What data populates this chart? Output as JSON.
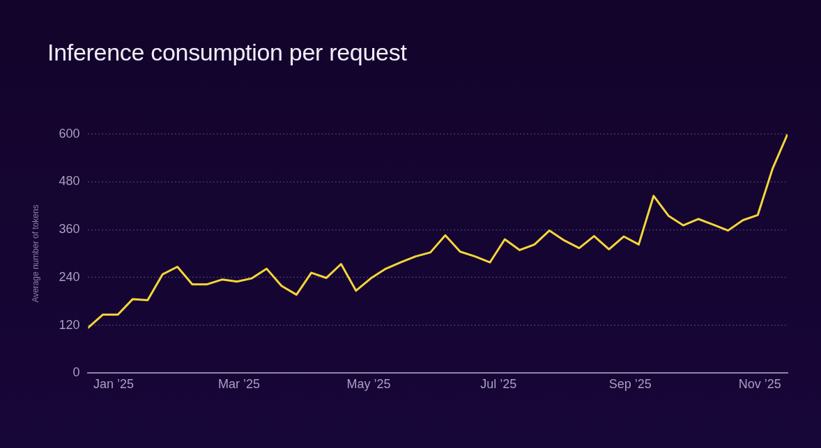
{
  "chart_data": {
    "type": "line",
    "title": "Inference consumption per request",
    "ylabel": "Average number of tokens",
    "x": [
      "2024-12-20",
      "2024-12-27",
      "2025-01-03",
      "2025-01-10",
      "2025-01-17",
      "2025-01-24",
      "2025-01-31",
      "2025-02-07",
      "2025-02-14",
      "2025-02-21",
      "2025-02-28",
      "2025-03-07",
      "2025-03-14",
      "2025-03-21",
      "2025-03-28",
      "2025-04-04",
      "2025-04-11",
      "2025-04-18",
      "2025-04-25",
      "2025-05-02",
      "2025-05-09",
      "2025-05-16",
      "2025-05-23",
      "2025-05-30",
      "2025-06-06",
      "2025-06-13",
      "2025-06-20",
      "2025-06-27",
      "2025-07-04",
      "2025-07-11",
      "2025-07-18",
      "2025-07-25",
      "2025-08-01",
      "2025-08-08",
      "2025-08-15",
      "2025-08-22",
      "2025-08-29",
      "2025-09-05",
      "2025-09-12",
      "2025-09-19",
      "2025-09-26",
      "2025-10-03",
      "2025-10-10",
      "2025-10-17",
      "2025-10-24",
      "2025-10-31",
      "2025-11-07",
      "2025-11-14"
    ],
    "series": [
      {
        "color": "#f5d63a",
        "values": [
          114,
          147,
          147,
          186,
          183,
          248,
          267,
          223,
          223,
          235,
          230,
          238,
          262,
          219,
          197,
          252,
          239,
          274,
          207,
          238,
          262,
          278,
          293,
          303,
          346,
          305,
          293,
          278,
          336,
          309,
          323,
          358,
          333,
          314,
          344,
          311,
          343,
          323,
          445,
          395,
          371,
          387,
          373,
          358,
          384,
          397,
          514,
          600
        ]
      }
    ],
    "xlim": [
      "2024-12-20",
      "2025-11-14"
    ],
    "xticks": [
      {
        "value": "2025-01-01",
        "label": "Jan ’25"
      },
      {
        "value": "2025-03-01",
        "label": "Mar ’25"
      },
      {
        "value": "2025-05-01",
        "label": "May ’25"
      },
      {
        "value": "2025-07-01",
        "label": "Jul ’25"
      },
      {
        "value": "2025-09-01",
        "label": "Sep ’25"
      },
      {
        "value": "2025-11-01",
        "label": "Nov ’25"
      }
    ],
    "ylim": [
      0,
      600
    ],
    "yticks": [
      0,
      120,
      240,
      360,
      480,
      600
    ],
    "grid": "y",
    "legend": false,
    "marker": "none",
    "line_style": "solid"
  }
}
